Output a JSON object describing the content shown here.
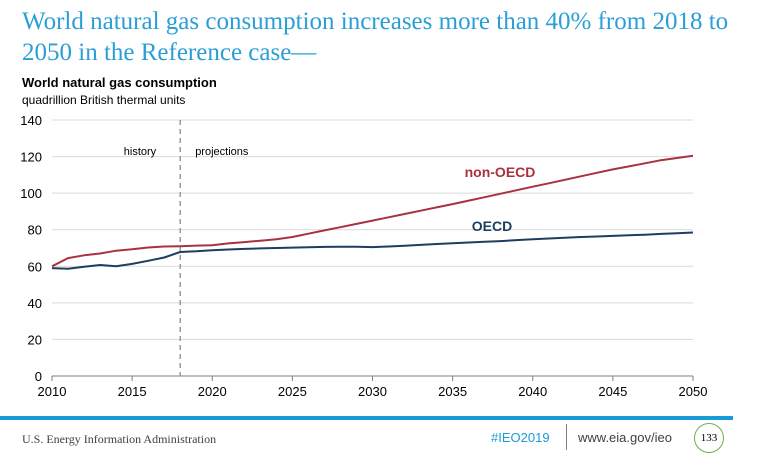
{
  "headline": "World natural gas consumption increases more than 40% from 2018 to 2050 in the Reference case—",
  "footer": {
    "source": "U.S. Energy Information Administration",
    "hashtag": "#IEO2019",
    "url": "www.eia.gov/ieo",
    "page_number": "133"
  },
  "colors": {
    "headline": "#2a9fd6",
    "non_oecd": "#a8323e",
    "oecd": "#1d3e5c",
    "footer_rule": "#1a9bd7",
    "badge_border": "#6ab04c"
  },
  "chart_data": {
    "type": "line",
    "title": "World natural gas consumption",
    "subtitle": "quadrillion British thermal units",
    "xlabel": "",
    "ylabel": "",
    "xlim": [
      2010,
      2050
    ],
    "ylim": [
      0,
      140
    ],
    "x_ticks": [
      "2010",
      "2015",
      "2020",
      "2025",
      "2030",
      "2035",
      "2040",
      "2045",
      "2050"
    ],
    "y_ticks": [
      "0",
      "20",
      "40",
      "60",
      "80",
      "100",
      "120",
      "140"
    ],
    "grid": "horizontal",
    "divider": {
      "x": 2018,
      "left_label": "history",
      "right_label": "projections"
    },
    "x": [
      2010,
      2011,
      2012,
      2013,
      2014,
      2015,
      2016,
      2017,
      2018,
      2019,
      2020,
      2021,
      2022,
      2023,
      2024,
      2025,
      2026,
      2027,
      2028,
      2029,
      2030,
      2031,
      2032,
      2033,
      2034,
      2035,
      2036,
      2037,
      2038,
      2039,
      2040,
      2041,
      2042,
      2043,
      2044,
      2045,
      2046,
      2047,
      2048,
      2049,
      2050
    ],
    "series": [
      {
        "name": "non-OECD",
        "values": [
          60,
          64.5,
          66,
          67,
          68.5,
          69.3,
          70.3,
          70.8,
          71,
          71.3,
          71.5,
          72.5,
          73.2,
          74,
          74.8,
          76,
          77.8,
          79.6,
          81.4,
          83.2,
          85,
          86.8,
          88.6,
          90.4,
          92.2,
          94,
          95.9,
          97.8,
          99.7,
          101.6,
          103.5,
          105.4,
          107.3,
          109.2,
          111.1,
          113,
          114.6,
          116.3,
          118,
          119.2,
          120.5
        ]
      },
      {
        "name": "OECD",
        "values": [
          59,
          58.7,
          59.8,
          60.7,
          60,
          61.3,
          63,
          64.8,
          67.8,
          68.2,
          68.8,
          69.2,
          69.5,
          69.8,
          70,
          70.2,
          70.4,
          70.6,
          70.7,
          70.7,
          70.5,
          70.8,
          71.2,
          71.7,
          72.2,
          72.6,
          73,
          73.4,
          73.8,
          74.3,
          74.8,
          75.2,
          75.6,
          76,
          76.3,
          76.6,
          77,
          77.3,
          77.7,
          78.1,
          78.5
        ]
      }
    ]
  }
}
